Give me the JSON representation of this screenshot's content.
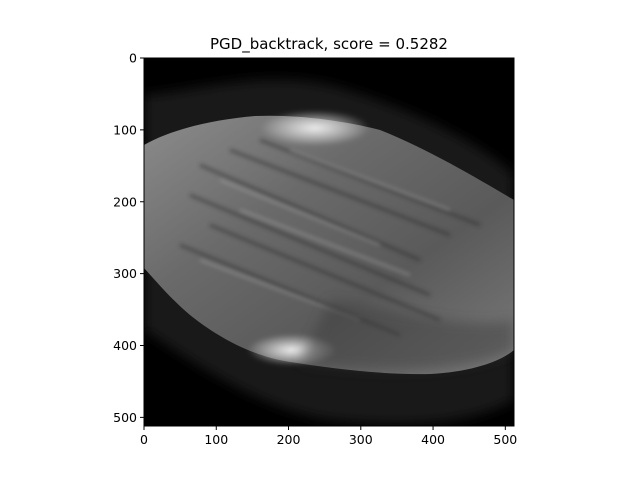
{
  "figure": {
    "title": "PGD_backtrack, score = 0.5282",
    "colormap": "gray",
    "image_size": [
      512,
      512
    ]
  },
  "axes": {
    "x": {
      "range": [
        0,
        512
      ],
      "ticks": [
        0,
        100,
        200,
        300,
        400,
        500
      ],
      "tick_labels": [
        "0",
        "100",
        "200",
        "300",
        "400",
        "500"
      ]
    },
    "y": {
      "range": [
        0,
        512
      ],
      "ticks": [
        0,
        100,
        200,
        300,
        400,
        500
      ],
      "tick_labels": [
        "0",
        "100",
        "200",
        "300",
        "400",
        "500"
      ]
    }
  },
  "colors": {
    "background": "#ffffff",
    "image_background": "#000000",
    "text": "#000000"
  }
}
